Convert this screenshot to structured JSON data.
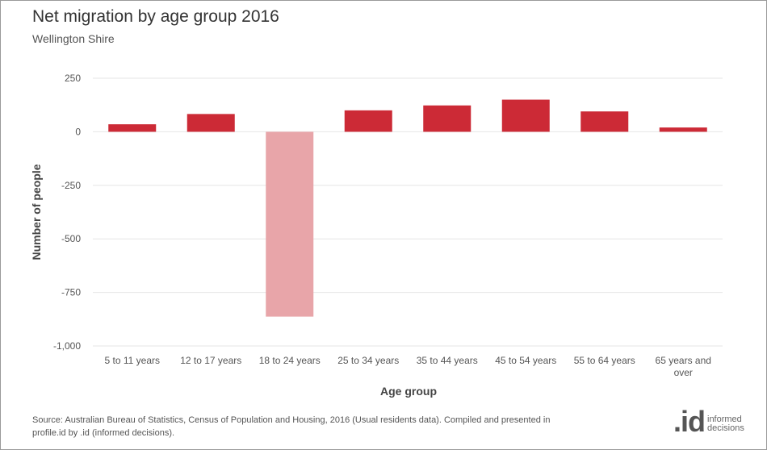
{
  "header": {
    "title": "Net migration by age group 2016",
    "subtitle": "Wellington Shire"
  },
  "chart_data": {
    "type": "bar",
    "title": "Net migration by age group 2016",
    "subtitle": "Wellington Shire",
    "xlabel": "Age group",
    "ylabel": "Number of people",
    "categories": [
      "5 to 11 years",
      "12 to 17 years",
      "18 to 24 years",
      "25 to 34 years",
      "35 to 44 years",
      "45 to 54 years",
      "55 to 64 years",
      "65 years and over"
    ],
    "values": [
      35,
      83,
      -863,
      100,
      123,
      150,
      95,
      20
    ],
    "ylim": [
      -1000,
      250
    ],
    "yticks": [
      250,
      0,
      -250,
      -500,
      -750,
      -1000
    ],
    "ytick_labels": [
      "250",
      "0",
      "-250",
      "-500",
      "-750",
      "-1,000"
    ],
    "grid": true,
    "colors": {
      "positive": "#cc2a36",
      "highlight": "#e8a5a9",
      "grid": "#e6e6e6"
    },
    "highlight_category": "18 to 24 years"
  },
  "footer": {
    "source": "Source: Australian Bureau of Statistics, Census of Population and Housing, 2016 (Usual residents data). Compiled and presented in profile.id by .id (informed decisions).",
    "logo_mark": ".id",
    "logo_line1": "informed",
    "logo_line2": "decisions"
  }
}
